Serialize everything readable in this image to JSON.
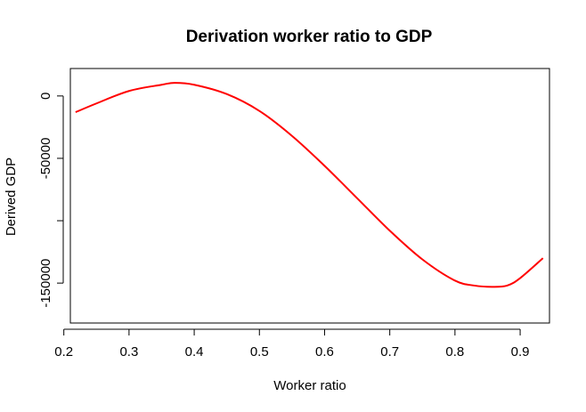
{
  "chart_data": {
    "type": "line",
    "title": "Derivation worker ratio to GDP",
    "xlabel": "Worker ratio",
    "ylabel": "Derived GDP",
    "xlim": [
      0.21,
      0.945
    ],
    "ylim": [
      -182000,
      22000
    ],
    "xticks": [
      0.2,
      0.3,
      0.4,
      0.5,
      0.6,
      0.7,
      0.8,
      0.9
    ],
    "xtick_labels": [
      "0.2",
      "0.3",
      "0.4",
      "0.5",
      "0.6",
      "0.7",
      "0.8",
      "0.9"
    ],
    "yticks": [
      0,
      -50000,
      -100000,
      -150000
    ],
    "ytick_labels": [
      "0",
      "-50000",
      "",
      "-150000"
    ],
    "grid": false,
    "line_color": "#ff0000",
    "series": [
      {
        "x": [
          0.218,
          0.25,
          0.3,
          0.35,
          0.37,
          0.4,
          0.45,
          0.5,
          0.55,
          0.6,
          0.65,
          0.7,
          0.75,
          0.8,
          0.83,
          0.857,
          0.88,
          0.9,
          0.935
        ],
        "y": [
          -13000,
          -6000,
          4000,
          9000,
          10500,
          9000,
          1500,
          -12000,
          -32000,
          -56000,
          -82000,
          -108000,
          -131000,
          -148000,
          -152000,
          -153000,
          -152000,
          -146000,
          -130000
        ]
      }
    ]
  }
}
